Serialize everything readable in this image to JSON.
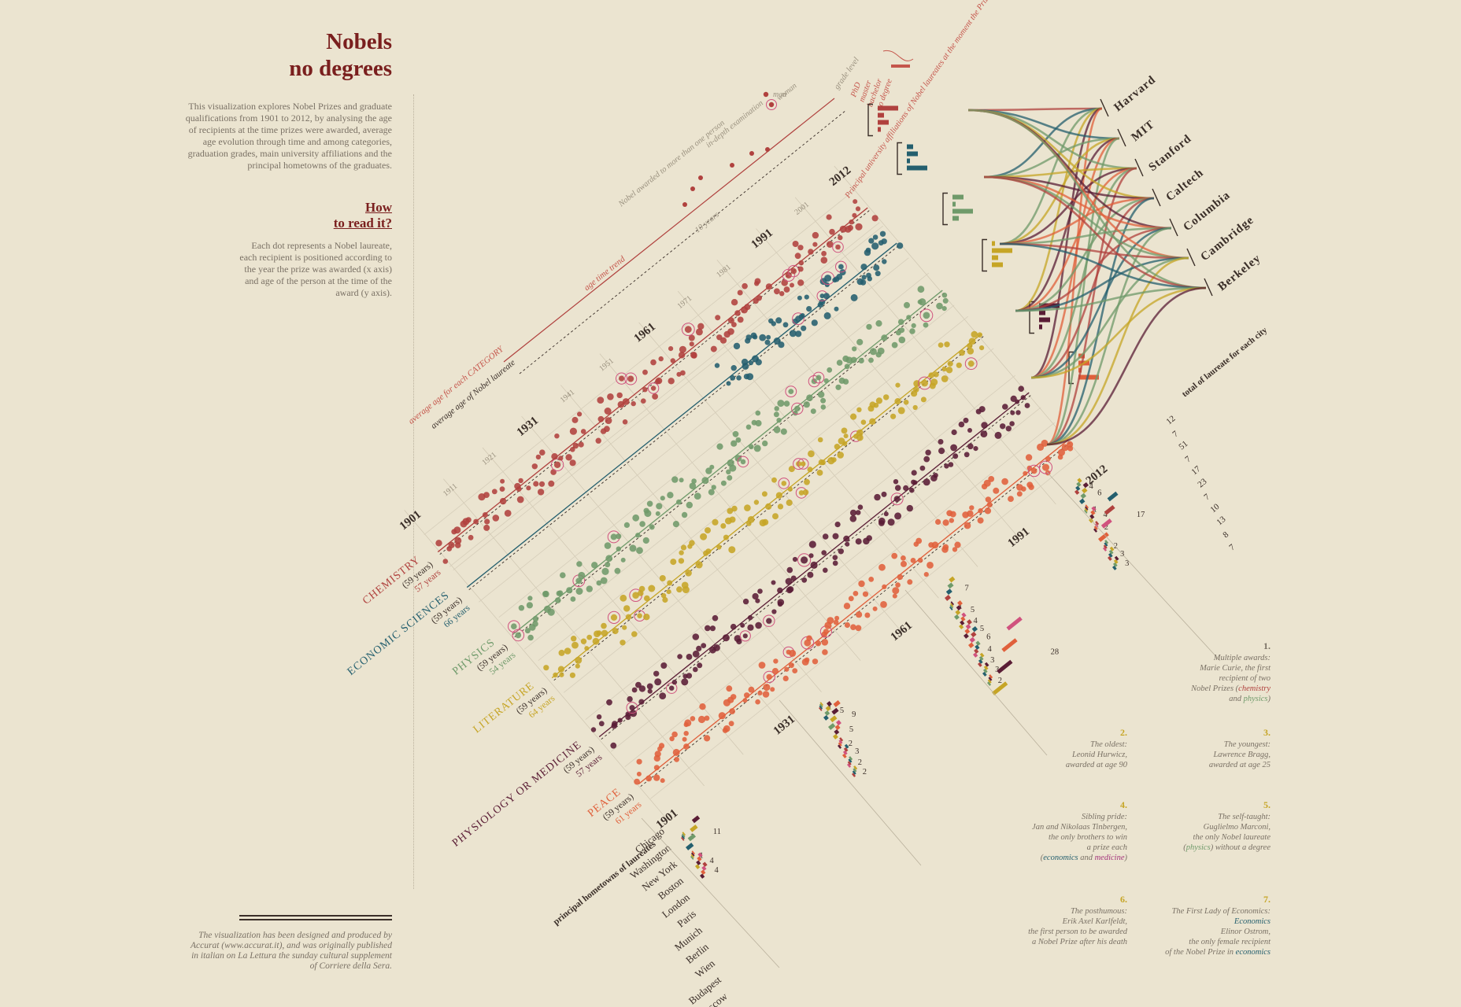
{
  "title": {
    "line1": "Nobels",
    "line2": "no degrees"
  },
  "intro": "This visualization explores Nobel Prizes and graduate qualifications from 1901 to 2012, by analysing the age of recipients at the time prizes were awarded, average age evolution through time and among categories, graduation grades, main university affiliations and the principal hometowns of the graduates.",
  "how_to": {
    "line1": "How",
    "line2": "to read it?",
    "text": "Each dot represents a Nobel laureate, each recipient is positioned according to the year the prize was awarded (x axis) and age of the person at the time of the award (y axis)."
  },
  "credit": "The visualization has been designed and produced by Accurat (www.accurat.it), and was originally published in italian on La Lettura the sunday cultural supplement of Corriere della Sera.",
  "legend": {
    "avg_category": "average age for each CATEGORY",
    "avg_all": "average age of Nobel laureate",
    "age_trend": "age time trend",
    "ten_years": "10 years",
    "more_than_one": "Nobel awarded to more than one person",
    "in_depth": "in-depth examination",
    "man": "man",
    "woman": "woman",
    "grade_level": "grade level",
    "grades": [
      "PhD",
      "master",
      "bachelor",
      "no degree"
    ],
    "affiliations": "Principal university affiliations of Nobel laureates at the moment the Prize was awarded",
    "total_city": "total of laureate for each city",
    "hometowns": "principal hometowns of laureates"
  },
  "colors": {
    "background": "#ebe4d0",
    "chemistry": "#b0413e",
    "economics": "#245f6e",
    "physics": "#6f9a6a",
    "literature": "#c6a526",
    "medicine": "#5a1d35",
    "peace": "#e0603b",
    "title": "#7a1f1e"
  },
  "chart_data": {
    "type": "scatter",
    "x_range": [
      1901,
      2012
    ],
    "year_ticks": [
      "1901",
      "1911",
      "1921",
      "1931",
      "1941",
      "1951",
      "1961",
      "1971",
      "1981",
      "1991",
      "2001",
      "2012"
    ],
    "series": [
      {
        "name": "CHEMISTRY",
        "avg": "(59 years)",
        "cat_avg": "57 years",
        "color": "#b0413e"
      },
      {
        "name": "ECONOMIC SCIENCES",
        "avg": "(59 years)",
        "cat_avg": "66 years",
        "color": "#245f6e"
      },
      {
        "name": "PHYSICS",
        "avg": "(59 years)",
        "cat_avg": "54 years",
        "color": "#6f9a6a"
      },
      {
        "name": "LITERATURE",
        "avg": "(59 years)",
        "cat_avg": "64 years",
        "color": "#c6a526"
      },
      {
        "name": "PHYSIOLOGY OR MEDICINE",
        "avg": "(59 years)",
        "cat_avg": "57 years",
        "color": "#5a1d35"
      },
      {
        "name": "PEACE",
        "avg": "(59 years)",
        "cat_avg": "61 years",
        "color": "#e0603b"
      }
    ],
    "universities": [
      "Harvard",
      "MIT",
      "Stanford",
      "Caltech",
      "Columbia",
      "Cambridge",
      "Berkeley"
    ],
    "university_totals": [
      "12",
      "7",
      "51",
      "7",
      "17",
      "23",
      "7",
      "10",
      "13",
      "8",
      "7"
    ],
    "cities": [
      "Chicago",
      "Washington",
      "New York",
      "Boston",
      "London",
      "Paris",
      "Munich",
      "Berlin",
      "Wien",
      "Budapest",
      "Moscow"
    ],
    "city_counts_1901": [
      "1",
      "11",
      "1",
      "4",
      "4"
    ],
    "city_counts_1931": [
      "1",
      "5",
      "9",
      "5",
      "2",
      "3",
      "2",
      "2"
    ],
    "city_counts_1961": [
      "7",
      "1",
      "5",
      "4",
      "5",
      "6",
      "4",
      "3",
      "3",
      "2",
      "28"
    ],
    "city_counts_1991": [
      "4",
      "6",
      "1",
      "4",
      "2",
      "17",
      "2",
      "3",
      "3"
    ]
  },
  "notes": [
    {
      "num": "1.",
      "lines": [
        "Multiple awards:",
        "Marie Curie, the first",
        "recipient of two",
        "Nobel Prizes"
      ],
      "hl": [
        "chemistry",
        "physics"
      ]
    },
    {
      "num": "2.",
      "lines": [
        "The oldest:",
        "Leonid Hurwicz,",
        "awarded at age 90"
      ]
    },
    {
      "num": "3.",
      "lines": [
        "The youngest:",
        "Lawrence Bragg,",
        "awarded at age 25"
      ]
    },
    {
      "num": "4.",
      "lines": [
        "Sibling pride:",
        "Jan and Nikolaas Tinbergen,",
        "the only brothers to win",
        "a prize each"
      ],
      "hl": [
        "economics",
        "medicine"
      ]
    },
    {
      "num": "5.",
      "lines": [
        "The self-taught:",
        "Guglielmo Marconi,",
        "the only Nobel laureate",
        "without a degree"
      ],
      "hl": [
        "physics"
      ]
    },
    {
      "num": "6.",
      "lines": [
        "The posthumous:",
        "Erik Axel Karlfeldt,",
        "the first person to be awarded",
        "a Nobel Prize after his death"
      ]
    },
    {
      "num": "7.",
      "lines": [
        "The First Lady of Economics:",
        "Elinor Ostrom,",
        "the only female recipient",
        "of the Nobel Prize in"
      ],
      "hl": [
        "Economics",
        "economics"
      ]
    }
  ],
  "note_words": {
    "and": "and",
    "without": "without a degree"
  }
}
